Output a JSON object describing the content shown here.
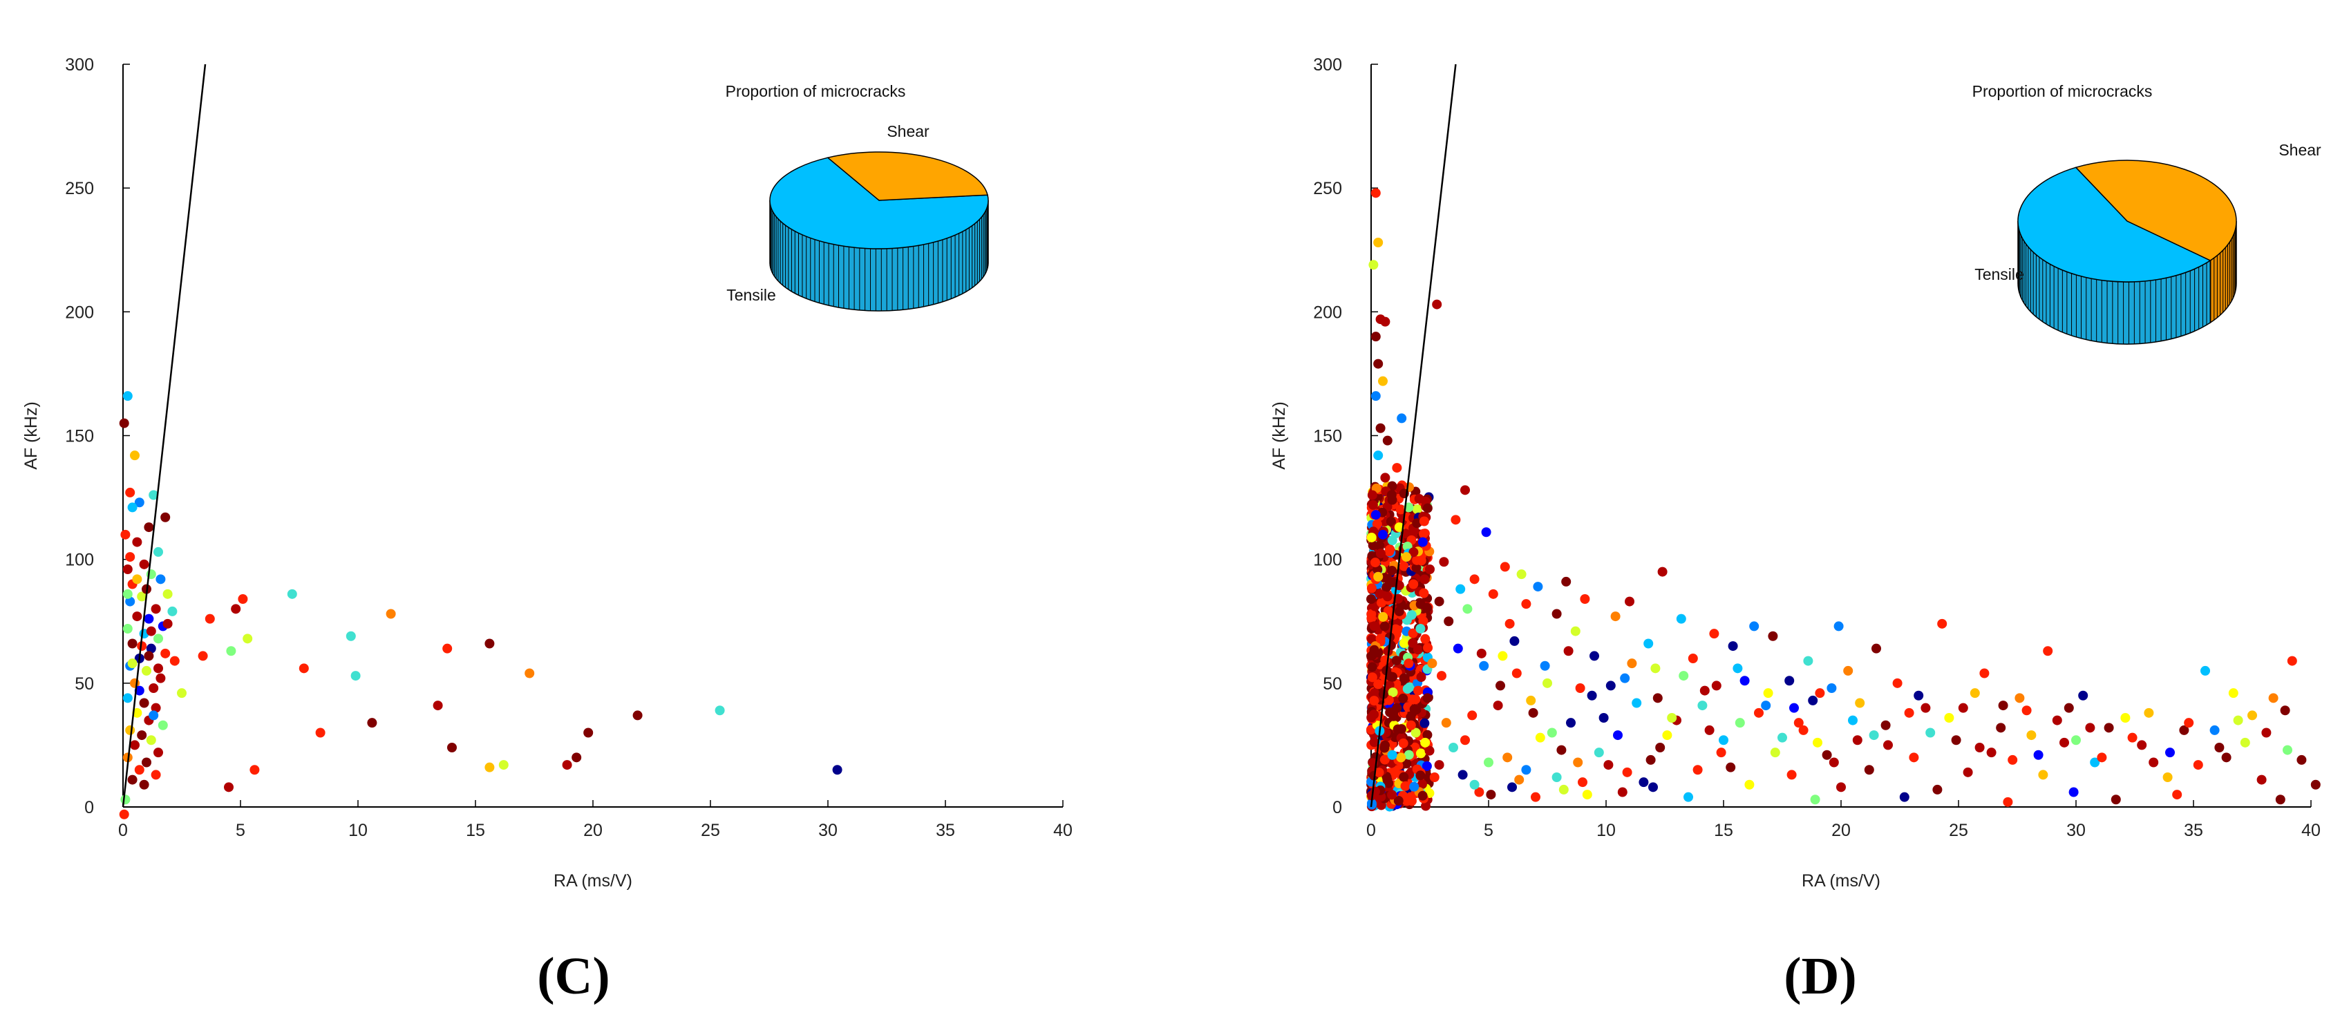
{
  "chart_data": [
    {
      "type": "scatter",
      "panel_label": "(C)",
      "xlabel": "RA (ms/V)",
      "ylabel": "AF (kHz)",
      "xlim": [
        0,
        40
      ],
      "ylim": [
        0,
        300
      ],
      "xticks": [
        0,
        5,
        10,
        15,
        20,
        25,
        30,
        35,
        40
      ],
      "yticks": [
        0,
        50,
        100,
        150,
        200,
        250,
        300
      ],
      "grid": false,
      "boundary_line": {
        "x": [
          0,
          3.5
        ],
        "y": [
          0,
          300
        ]
      },
      "colormap": [
        "#00008b",
        "#0000ff",
        "#0080ff",
        "#00bfff",
        "#40e0d0",
        "#7fff7f",
        "#d4ff2a",
        "#ffff00",
        "#ffbf00",
        "#ff8000",
        "#ff2000",
        "#b00000",
        "#800000"
      ],
      "points": [
        [
          0.2,
          166
        ],
        [
          0.05,
          155
        ],
        [
          0.5,
          142
        ],
        [
          1.8,
          117
        ],
        [
          0.3,
          127
        ],
        [
          1.3,
          126
        ],
        [
          0.7,
          123
        ],
        [
          0.4,
          121
        ],
        [
          1.1,
          113
        ],
        [
          0.1,
          110
        ],
        [
          0.6,
          107
        ],
        [
          1.5,
          103
        ],
        [
          0.9,
          98
        ],
        [
          0.2,
          96
        ],
        [
          1.2,
          94
        ],
        [
          1.6,
          92
        ],
        [
          0.4,
          90
        ],
        [
          1.9,
          86
        ],
        [
          0.8,
          85
        ],
        [
          0.3,
          83
        ],
        [
          1.4,
          80
        ],
        [
          2.1,
          79
        ],
        [
          0.6,
          77
        ],
        [
          1.1,
          76
        ],
        [
          1.7,
          73
        ],
        [
          0.2,
          72
        ],
        [
          0.9,
          70
        ],
        [
          1.5,
          68
        ],
        [
          0.4,
          66
        ],
        [
          1.2,
          64
        ],
        [
          1.8,
          62
        ],
        [
          0.7,
          60
        ],
        [
          2.2,
          59
        ],
        [
          0.3,
          57
        ],
        [
          1.0,
          55
        ],
        [
          1.6,
          52
        ],
        [
          0.5,
          50
        ],
        [
          1.3,
          48
        ],
        [
          2.5,
          46
        ],
        [
          0.2,
          44
        ],
        [
          0.9,
          42
        ],
        [
          1.4,
          40
        ],
        [
          0.6,
          38
        ],
        [
          1.1,
          35
        ],
        [
          1.7,
          33
        ],
        [
          0.3,
          31
        ],
        [
          0.8,
          29
        ],
        [
          1.2,
          27
        ],
        [
          0.5,
          25
        ],
        [
          1.5,
          22
        ],
        [
          0.2,
          20
        ],
        [
          1.0,
          18
        ],
        [
          0.7,
          15
        ],
        [
          1.4,
          13
        ],
        [
          0.4,
          11
        ],
        [
          0.9,
          9
        ],
        [
          0.1,
          3
        ],
        [
          0.05,
          -3
        ],
        [
          0.3,
          101
        ],
        [
          1.0,
          88
        ],
        [
          1.5,
          56
        ],
        [
          0.8,
          65
        ],
        [
          1.2,
          71
        ],
        [
          0.6,
          92
        ],
        [
          0.4,
          58
        ],
        [
          1.9,
          74
        ],
        [
          0.7,
          47
        ],
        [
          1.3,
          37
        ],
        [
          0.2,
          86
        ],
        [
          1.1,
          61
        ],
        [
          7.2,
          86
        ],
        [
          5.1,
          84
        ],
        [
          4.8,
          80
        ],
        [
          11.4,
          78
        ],
        [
          3.7,
          76
        ],
        [
          9.7,
          69
        ],
        [
          5.3,
          68
        ],
        [
          15.6,
          66
        ],
        [
          13.8,
          64
        ],
        [
          4.6,
          63
        ],
        [
          3.4,
          61
        ],
        [
          7.7,
          56
        ],
        [
          17.3,
          54
        ],
        [
          9.9,
          53
        ],
        [
          13.4,
          41
        ],
        [
          25.4,
          39
        ],
        [
          21.9,
          37
        ],
        [
          10.6,
          34
        ],
        [
          8.4,
          30
        ],
        [
          19.8,
          30
        ],
        [
          14.0,
          24
        ],
        [
          19.3,
          20
        ],
        [
          18.9,
          17
        ],
        [
          16.2,
          17
        ],
        [
          15.6,
          16
        ],
        [
          5.6,
          15
        ],
        [
          30.4,
          15
        ],
        [
          4.5,
          8
        ]
      ],
      "pie": {
        "title": "Proportion of microcracks",
        "slices": [
          {
            "label": "Shear",
            "value": 0.31,
            "color": "#ffa500"
          },
          {
            "label": "Tensile",
            "value": 0.69,
            "color": "#00bfff"
          }
        ]
      }
    },
    {
      "type": "scatter",
      "panel_label": "(D)",
      "xlabel": "RA (ms/V)",
      "ylabel": "AF (kHz)",
      "xlim": [
        0,
        40
      ],
      "ylim": [
        0,
        300
      ],
      "xticks": [
        0,
        5,
        10,
        15,
        20,
        25,
        30,
        35,
        40
      ],
      "yticks": [
        0,
        50,
        100,
        150,
        200,
        250,
        300
      ],
      "grid": false,
      "boundary_line": {
        "x": [
          0,
          3.6
        ],
        "y": [
          0,
          300
        ]
      },
      "colormap": [
        "#00008b",
        "#0000ff",
        "#0080ff",
        "#00bfff",
        "#40e0d0",
        "#7fff7f",
        "#d4ff2a",
        "#ffff00",
        "#ffbf00",
        "#ff8000",
        "#ff2000",
        "#b00000",
        "#800000"
      ],
      "points": [
        [
          0.2,
          248
        ],
        [
          0.3,
          228
        ],
        [
          0.1,
          219
        ],
        [
          2.8,
          203
        ],
        [
          0.4,
          197
        ],
        [
          0.6,
          196
        ],
        [
          0.2,
          190
        ],
        [
          0.3,
          179
        ],
        [
          0.5,
          172
        ],
        [
          0.2,
          166
        ],
        [
          1.3,
          157
        ],
        [
          0.4,
          153
        ],
        [
          0.7,
          148
        ],
        [
          0.3,
          142
        ],
        [
          1.1,
          137
        ],
        [
          0.6,
          133
        ],
        [
          4.0,
          128
        ],
        [
          0.9,
          124
        ],
        [
          1.6,
          121
        ],
        [
          0.2,
          118
        ],
        [
          3.6,
          116
        ],
        [
          1.2,
          113
        ],
        [
          0.5,
          110
        ],
        [
          2.2,
          107
        ],
        [
          4.9,
          111
        ],
        [
          0.8,
          104
        ],
        [
          1.5,
          101
        ],
        [
          3.1,
          99
        ],
        [
          5.7,
          97
        ],
        [
          2.5,
          96
        ],
        [
          12.4,
          95
        ],
        [
          6.4,
          94
        ],
        [
          0.3,
          93
        ],
        [
          4.4,
          92
        ],
        [
          1.8,
          90
        ],
        [
          7.1,
          89
        ],
        [
          8.3,
          91
        ],
        [
          3.8,
          88
        ],
        [
          5.2,
          86
        ],
        [
          0.7,
          85
        ],
        [
          9.1,
          84
        ],
        [
          2.9,
          83
        ],
        [
          6.6,
          82
        ],
        [
          11.0,
          83
        ],
        [
          4.1,
          80
        ],
        [
          1.2,
          79
        ],
        [
          7.9,
          78
        ],
        [
          10.4,
          77
        ],
        [
          13.2,
          76
        ],
        [
          3.3,
          75
        ],
        [
          5.9,
          74
        ],
        [
          16.3,
          73
        ],
        [
          19.9,
          73
        ],
        [
          24.3,
          74
        ],
        [
          2.1,
          72
        ],
        [
          8.7,
          71
        ],
        [
          14.6,
          70
        ],
        [
          17.1,
          69
        ],
        [
          0.4,
          68
        ],
        [
          6.1,
          67
        ],
        [
          11.8,
          66
        ],
        [
          15.4,
          65
        ],
        [
          21.5,
          64
        ],
        [
          28.8,
          63
        ],
        [
          4.7,
          62
        ],
        [
          9.5,
          61
        ],
        [
          13.7,
          60
        ],
        [
          18.6,
          59
        ],
        [
          1.6,
          58
        ],
        [
          7.4,
          57
        ],
        [
          12.1,
          56
        ],
        [
          20.3,
          55
        ],
        [
          26.1,
          54
        ],
        [
          35.5,
          55
        ],
        [
          39.2,
          59
        ],
        [
          3.0,
          53
        ],
        [
          10.8,
          52
        ],
        [
          15.9,
          51
        ],
        [
          22.4,
          50
        ],
        [
          5.5,
          49
        ],
        [
          8.9,
          48
        ],
        [
          14.2,
          47
        ],
        [
          19.1,
          46
        ],
        [
          25.7,
          46
        ],
        [
          30.3,
          45
        ],
        [
          36.7,
          46
        ],
        [
          38.4,
          44
        ],
        [
          2.4,
          44
        ],
        [
          6.8,
          43
        ],
        [
          11.3,
          42
        ],
        [
          16.8,
          41
        ],
        [
          23.6,
          40
        ],
        [
          27.9,
          39
        ],
        [
          33.1,
          38
        ],
        [
          37.5,
          37
        ],
        [
          4.3,
          37
        ],
        [
          9.9,
          36
        ],
        [
          13.0,
          35
        ],
        [
          18.2,
          34
        ],
        [
          21.9,
          33
        ],
        [
          26.8,
          32
        ],
        [
          31.4,
          32
        ],
        [
          34.6,
          31
        ],
        [
          1.9,
          30
        ],
        [
          7.7,
          30
        ],
        [
          12.6,
          29
        ],
        [
          17.5,
          28
        ],
        [
          20.7,
          27
        ],
        [
          24.9,
          27
        ],
        [
          29.5,
          26
        ],
        [
          32.8,
          25
        ],
        [
          36.1,
          24
        ],
        [
          39.0,
          23
        ],
        [
          3.5,
          24
        ],
        [
          8.1,
          23
        ],
        [
          14.9,
          22
        ],
        [
          19.4,
          21
        ],
        [
          23.1,
          20
        ],
        [
          27.3,
          19
        ],
        [
          30.8,
          18
        ],
        [
          35.2,
          17
        ],
        [
          5.0,
          18
        ],
        [
          10.1,
          17
        ],
        [
          15.3,
          16
        ],
        [
          21.2,
          15
        ],
        [
          25.4,
          14
        ],
        [
          28.6,
          13
        ],
        [
          33.9,
          12
        ],
        [
          37.9,
          11
        ],
        [
          2.7,
          12
        ],
        [
          6.3,
          11
        ],
        [
          11.6,
          10
        ],
        [
          16.1,
          9
        ],
        [
          20.0,
          8
        ],
        [
          24.1,
          7
        ],
        [
          29.9,
          6
        ],
        [
          34.3,
          5
        ],
        [
          38.7,
          3
        ],
        [
          4.6,
          6
        ],
        [
          9.2,
          5
        ],
        [
          13.5,
          4
        ],
        [
          18.9,
          3
        ],
        [
          22.7,
          4
        ],
        [
          27.1,
          2
        ],
        [
          31.7,
          3
        ],
        [
          12.8,
          36
        ],
        [
          14.1,
          41
        ],
        [
          16.5,
          38
        ],
        [
          18.4,
          31
        ],
        [
          15.0,
          27
        ],
        [
          10.5,
          29
        ],
        [
          8.5,
          34
        ],
        [
          6.9,
          38
        ],
        [
          5.4,
          41
        ],
        [
          7.2,
          28
        ],
        [
          9.7,
          22
        ],
        [
          11.9,
          19
        ],
        [
          13.9,
          15
        ],
        [
          17.9,
          13
        ],
        [
          19.7,
          18
        ],
        [
          22.0,
          25
        ],
        [
          23.8,
          30
        ],
        [
          26.4,
          22
        ],
        [
          28.1,
          29
        ],
        [
          29.2,
          35
        ],
        [
          31.1,
          20
        ],
        [
          32.4,
          28
        ],
        [
          34.0,
          22
        ],
        [
          35.9,
          31
        ],
        [
          37.2,
          26
        ],
        [
          39.6,
          19
        ],
        [
          40.2,
          9
        ],
        [
          3.2,
          34
        ],
        [
          4.0,
          27
        ],
        [
          5.8,
          20
        ],
        [
          6.6,
          15
        ],
        [
          7.9,
          12
        ],
        [
          8.8,
          18
        ],
        [
          10.9,
          14
        ],
        [
          12.3,
          24
        ],
        [
          14.4,
          31
        ],
        [
          15.7,
          34
        ],
        [
          17.2,
          22
        ],
        [
          18.0,
          40
        ],
        [
          19.0,
          26
        ],
        [
          20.5,
          35
        ],
        [
          21.4,
          29
        ],
        [
          22.9,
          38
        ],
        [
          24.6,
          36
        ],
        [
          25.9,
          24
        ],
        [
          26.9,
          41
        ],
        [
          28.4,
          21
        ],
        [
          30.0,
          27
        ],
        [
          30.6,
          32
        ],
        [
          33.3,
          18
        ],
        [
          36.4,
          20
        ],
        [
          38.1,
          30
        ],
        [
          1.4,
          52
        ],
        [
          2.0,
          47
        ],
        [
          2.6,
          58
        ],
        [
          3.7,
          64
        ],
        [
          4.8,
          57
        ],
        [
          5.6,
          61
        ],
        [
          6.2,
          54
        ],
        [
          7.5,
          50
        ],
        [
          8.4,
          63
        ],
        [
          9.4,
          45
        ],
        [
          10.2,
          49
        ],
        [
          11.1,
          58
        ],
        [
          12.2,
          44
        ],
        [
          13.3,
          53
        ],
        [
          14.7,
          49
        ],
        [
          15.6,
          56
        ],
        [
          16.9,
          46
        ],
        [
          17.8,
          51
        ],
        [
          18.8,
          43
        ],
        [
          19.6,
          48
        ],
        [
          20.8,
          42
        ],
        [
          23.3,
          45
        ],
        [
          25.2,
          40
        ],
        [
          27.6,
          44
        ],
        [
          29.7,
          40
        ],
        [
          32.1,
          36
        ],
        [
          34.8,
          34
        ],
        [
          36.9,
          35
        ],
        [
          38.9,
          39
        ],
        [
          1.1,
          40
        ],
        [
          1.7,
          33
        ],
        [
          2.3,
          26
        ],
        [
          0.9,
          21
        ],
        [
          2.9,
          17
        ],
        [
          3.9,
          13
        ],
        [
          4.4,
          9
        ],
        [
          5.1,
          5
        ],
        [
          6.0,
          8
        ],
        [
          7.0,
          4
        ],
        [
          8.2,
          7
        ],
        [
          9.0,
          10
        ],
        [
          10.7,
          6
        ],
        [
          12.0,
          8
        ]
      ],
      "dense_cluster": {
        "x_range": [
          0,
          2.5
        ],
        "y_range": [
          0,
          130
        ],
        "count": 900
      },
      "pie": {
        "title": "Proportion of microcracks",
        "slices": [
          {
            "label": "Shear",
            "value": 0.44,
            "color": "#ffa500"
          },
          {
            "label": "Tensile",
            "value": 0.56,
            "color": "#00bfff"
          }
        ]
      }
    }
  ]
}
